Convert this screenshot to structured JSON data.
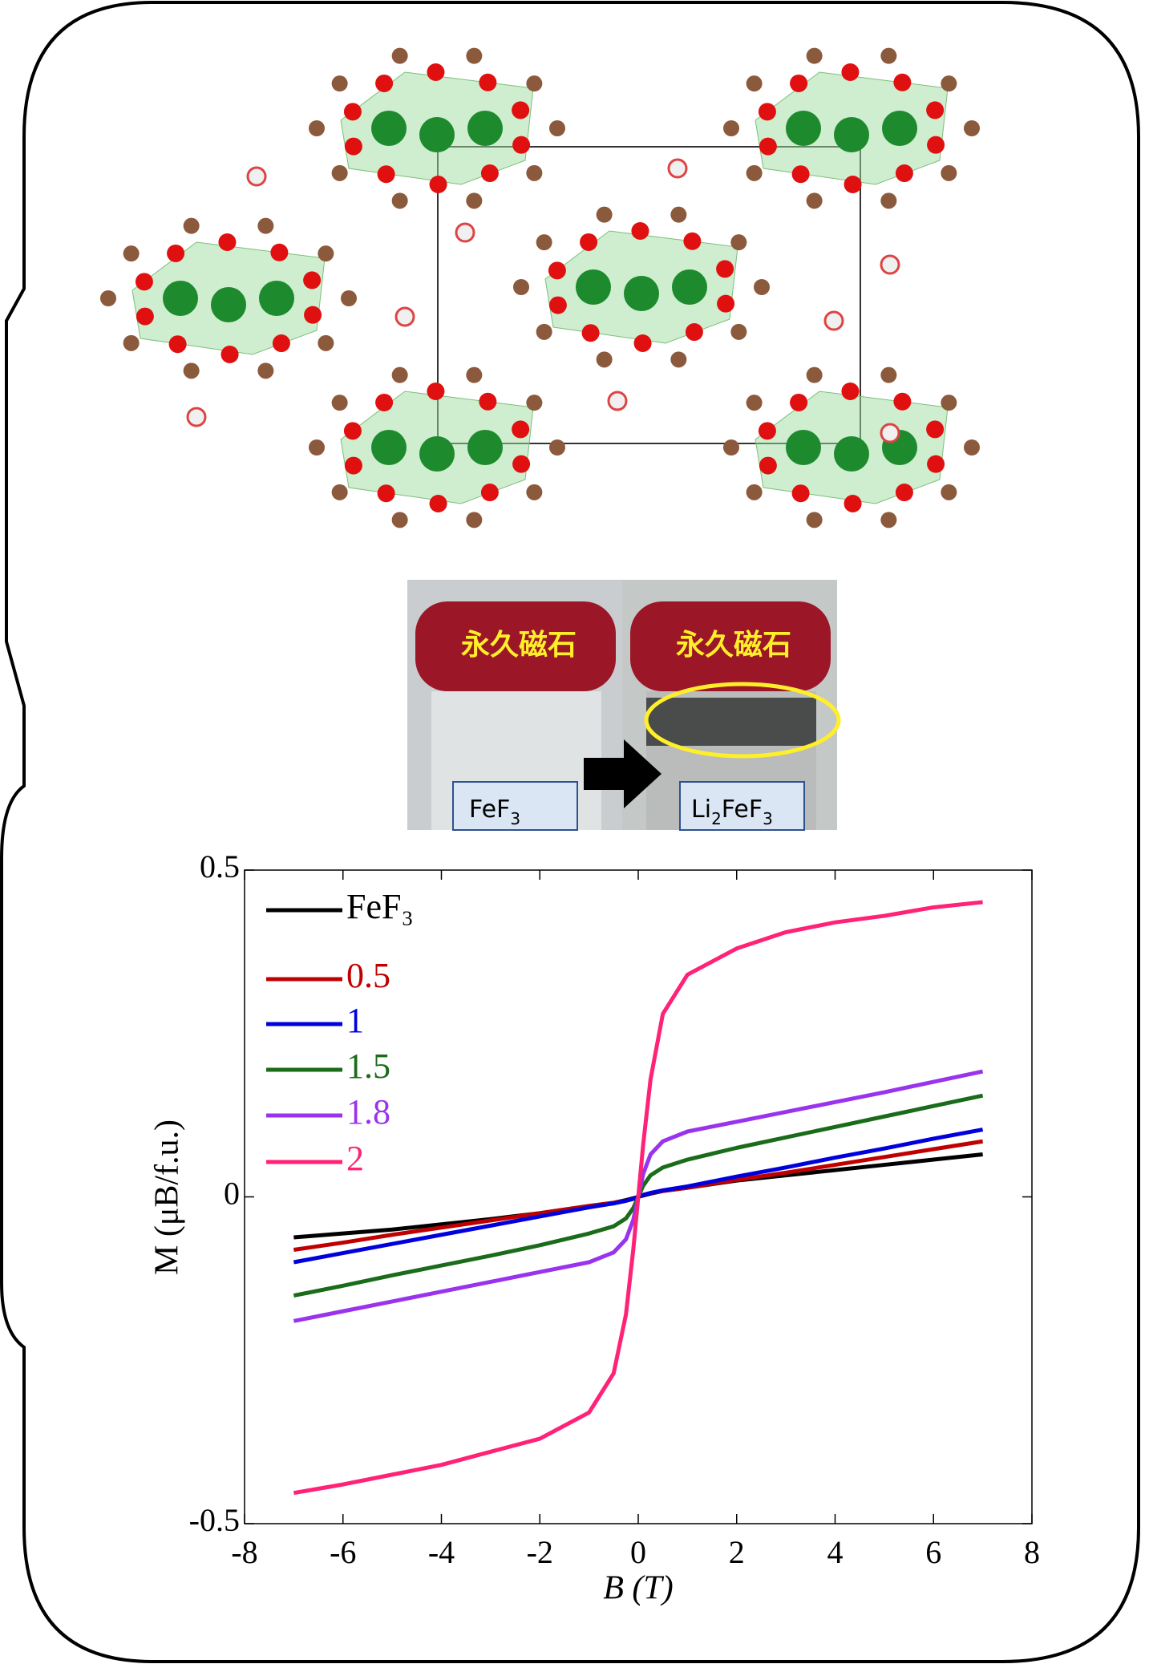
{
  "photo": {
    "magnet_labels": [
      "永久磁石",
      "永久磁石"
    ],
    "before": [
      "FeF",
      "3"
    ],
    "after": [
      "Li",
      "2",
      "FeF",
      "3"
    ]
  },
  "chart_data": {
    "type": "line",
    "x_label": "B (T)",
    "y_label": "M (μB/f.u.)",
    "x": [
      -7,
      -6,
      -5,
      -4,
      -3,
      -2,
      -1,
      -0.5,
      -0.25,
      -0.1,
      0,
      0.1,
      0.25,
      0.5,
      1,
      2,
      3,
      4,
      5,
      6,
      7
    ],
    "xlim": [
      -8,
      8
    ],
    "xticks": [
      -8,
      -6,
      -4,
      -2,
      0,
      2,
      4,
      6,
      8
    ],
    "ylim": [
      -0.5,
      0.5
    ],
    "yticks": [
      -0.5,
      0,
      0.5
    ],
    "grid": false,
    "legend": "upper left",
    "series": [
      {
        "name": "FeF₃",
        "color": "#000000",
        "values": [
          -0.062,
          -0.056,
          -0.05,
          -0.042,
          -0.034,
          -0.025,
          -0.014,
          -0.009,
          -0.005,
          -0.002,
          0,
          0.002,
          0.005,
          0.009,
          0.014,
          0.025,
          0.033,
          0.041,
          0.049,
          0.057,
          0.065
        ]
      },
      {
        "name": "0.5",
        "color": "#c00000",
        "values": [
          -0.081,
          -0.07,
          -0.058,
          -0.047,
          -0.036,
          -0.025,
          -0.014,
          -0.009,
          -0.006,
          -0.003,
          0,
          0.003,
          0.006,
          0.009,
          0.014,
          0.026,
          0.037,
          0.049,
          0.061,
          0.073,
          0.085
        ]
      },
      {
        "name": "1",
        "color": "#0000dd",
        "values": [
          -0.1,
          -0.086,
          -0.072,
          -0.058,
          -0.044,
          -0.03,
          -0.016,
          -0.01,
          -0.006,
          -0.003,
          0,
          0.003,
          0.006,
          0.01,
          0.016,
          0.031,
          0.045,
          0.06,
          0.074,
          0.089,
          0.103
        ]
      },
      {
        "name": "1.5",
        "color": "#1a6b1a",
        "values": [
          -0.151,
          -0.136,
          -0.12,
          -0.105,
          -0.09,
          -0.074,
          -0.056,
          -0.045,
          -0.033,
          -0.017,
          0,
          0.017,
          0.033,
          0.045,
          0.057,
          0.075,
          0.091,
          0.107,
          0.123,
          0.139,
          0.155
        ]
      },
      {
        "name": "1.8",
        "color": "#9933ee",
        "values": [
          -0.19,
          -0.175,
          -0.16,
          -0.145,
          -0.13,
          -0.115,
          -0.1,
          -0.085,
          -0.065,
          -0.035,
          0,
          0.035,
          0.065,
          0.085,
          0.1,
          0.115,
          0.13,
          0.145,
          0.16,
          0.176,
          0.192
        ]
      },
      {
        "name": "2",
        "color": "#ff2277",
        "values": [
          -0.453,
          -0.44,
          -0.425,
          -0.41,
          -0.39,
          -0.37,
          -0.33,
          -0.27,
          -0.18,
          -0.08,
          0,
          0.08,
          0.18,
          0.28,
          0.34,
          0.38,
          0.405,
          0.42,
          0.43,
          0.443,
          0.451
        ]
      }
    ]
  }
}
